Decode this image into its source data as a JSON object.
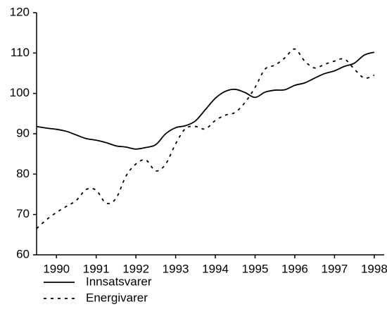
{
  "chart_data": {
    "type": "line",
    "x": [
      1990,
      1990.25,
      1990.5,
      1990.75,
      1991,
      1991.25,
      1991.5,
      1991.75,
      1992,
      1992.25,
      1992.5,
      1992.75,
      1993,
      1993.25,
      1993.5,
      1993.75,
      1994,
      1994.25,
      1994.5,
      1994.75,
      1995,
      1995.25,
      1995.5,
      1995.75,
      1996,
      1996.25,
      1996.5,
      1996.75,
      1997,
      1997.25,
      1997.5,
      1997.75,
      1998,
      1998.25,
      1998.5
    ],
    "series": [
      {
        "name": "Innsatsvarer",
        "color": "#000000",
        "dash": "solid",
        "values": [
          91.8,
          91.4,
          91.1,
          90.6,
          89.7,
          88.8,
          88.4,
          87.8,
          87.0,
          86.7,
          86.2,
          86.6,
          87.3,
          90.0,
          91.5,
          92.0,
          93.2,
          96.0,
          98.8,
          100.5,
          101.0,
          100.2,
          99.0,
          100.3,
          100.8,
          100.9,
          102.0,
          102.6,
          103.8,
          104.9,
          105.6,
          106.7,
          107.5,
          109.5,
          110.2
        ]
      },
      {
        "name": "Energivarer",
        "color": "#000000",
        "dash": "dotted",
        "values": [
          66.5,
          68.7,
          70.5,
          72.0,
          73.5,
          76.2,
          76.0,
          72.8,
          74.0,
          79.5,
          82.5,
          83.5,
          80.8,
          82.5,
          87.5,
          91.3,
          91.8,
          91.2,
          93.3,
          94.6,
          95.3,
          97.8,
          101.5,
          106.0,
          107.0,
          108.8,
          111.0,
          108.0,
          106.3,
          107.2,
          108.0,
          108.5,
          106.0,
          103.8,
          104.5
        ]
      }
    ],
    "xlim": [
      1990,
      1998.75
    ],
    "xticks": [
      {
        "value": 1990.5,
        "label": "1990"
      },
      {
        "value": 1991.5,
        "label": "1991"
      },
      {
        "value": 1992.5,
        "label": "1992"
      },
      {
        "value": 1993.5,
        "label": "1993"
      },
      {
        "value": 1994.5,
        "label": "1994"
      },
      {
        "value": 1995.5,
        "label": "1995"
      },
      {
        "value": 1996.5,
        "label": "1996"
      },
      {
        "value": 1997.5,
        "label": "1997"
      },
      {
        "value": 1998.5,
        "label": "1998"
      }
    ],
    "ylim": [
      60,
      120
    ],
    "yticks": [
      60,
      70,
      80,
      90,
      100,
      110,
      120
    ],
    "legend": "bottom-left"
  }
}
